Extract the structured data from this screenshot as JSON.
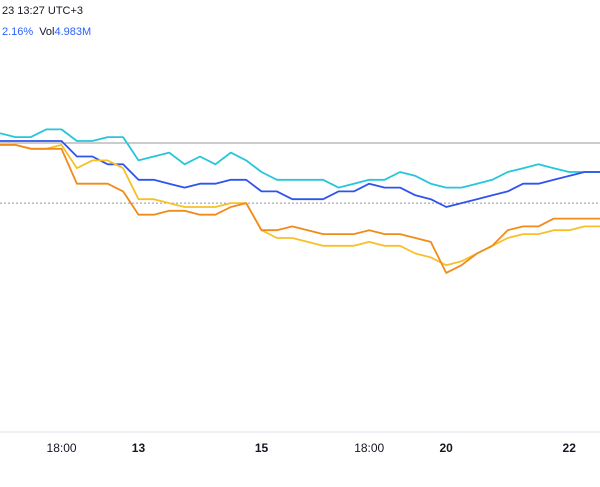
{
  "header": {
    "timestamp": "23 13:27 UTC+3",
    "change": "2.16%",
    "vol_label": "Vol",
    "vol_value": "4.983M"
  },
  "chart_data": {
    "type": "line",
    "title": "",
    "xlabel": "",
    "ylabel": "",
    "ylim": [
      0,
      100
    ],
    "grid": false,
    "reference_lines": [
      74.5,
      59.0
    ],
    "x_ticks": [
      {
        "label": "18:00",
        "x": 4
      },
      {
        "label": "13",
        "x": 9,
        "bold": true
      },
      {
        "label": "15",
        "x": 17,
        "bold": true
      },
      {
        "label": "18:00",
        "x": 24
      },
      {
        "label": "20",
        "x": 29,
        "bold": true
      },
      {
        "label": "22",
        "x": 37,
        "bold": true
      }
    ],
    "x": [
      0,
      1,
      2,
      3,
      4,
      5,
      6,
      7,
      8,
      9,
      10,
      11,
      12,
      13,
      14,
      15,
      16,
      17,
      18,
      19,
      20,
      21,
      22,
      23,
      24,
      25,
      26,
      27,
      28,
      29,
      30,
      31,
      32,
      33,
      34,
      35,
      36,
      37,
      38,
      39
    ],
    "series": [
      {
        "color": "#26c6da",
        "values": [
          77,
          76,
          76,
          78,
          78,
          75,
          75,
          76,
          76,
          70,
          71,
          72,
          69,
          71,
          69,
          72,
          70,
          67,
          65,
          65,
          65,
          65,
          63,
          64,
          65,
          65,
          67,
          66,
          64,
          63,
          63,
          64,
          65,
          67,
          68,
          69,
          68,
          67,
          67,
          67
        ]
      },
      {
        "color": "#2f54eb",
        "values": [
          75,
          75,
          75,
          75,
          75,
          71,
          71,
          69,
          69,
          65,
          65,
          64,
          63,
          64,
          64,
          65,
          65,
          62,
          62,
          60,
          60,
          60,
          62,
          62,
          64,
          63,
          63,
          61,
          60,
          58,
          59,
          60,
          61,
          62,
          64,
          64,
          65,
          66,
          67,
          67
        ]
      },
      {
        "color": "#f7c02b",
        "values": [
          74,
          74,
          73,
          73,
          74,
          68,
          70,
          70,
          68,
          60,
          60,
          59,
          58,
          58,
          58,
          59,
          59,
          52,
          50,
          50,
          49,
          48,
          48,
          48,
          49,
          48,
          48,
          46,
          45,
          43,
          44,
          46,
          48,
          50,
          51,
          51,
          52,
          52,
          53,
          53
        ]
      },
      {
        "color": "#f08b1a",
        "values": [
          74,
          74,
          73,
          73,
          73,
          64,
          64,
          64,
          62,
          56,
          56,
          57,
          57,
          56,
          56,
          58,
          59,
          52,
          52,
          53,
          52,
          51,
          51,
          51,
          52,
          51,
          51,
          50,
          49,
          41,
          43,
          46,
          48,
          52,
          53,
          53,
          55,
          55,
          55,
          55
        ]
      }
    ]
  }
}
